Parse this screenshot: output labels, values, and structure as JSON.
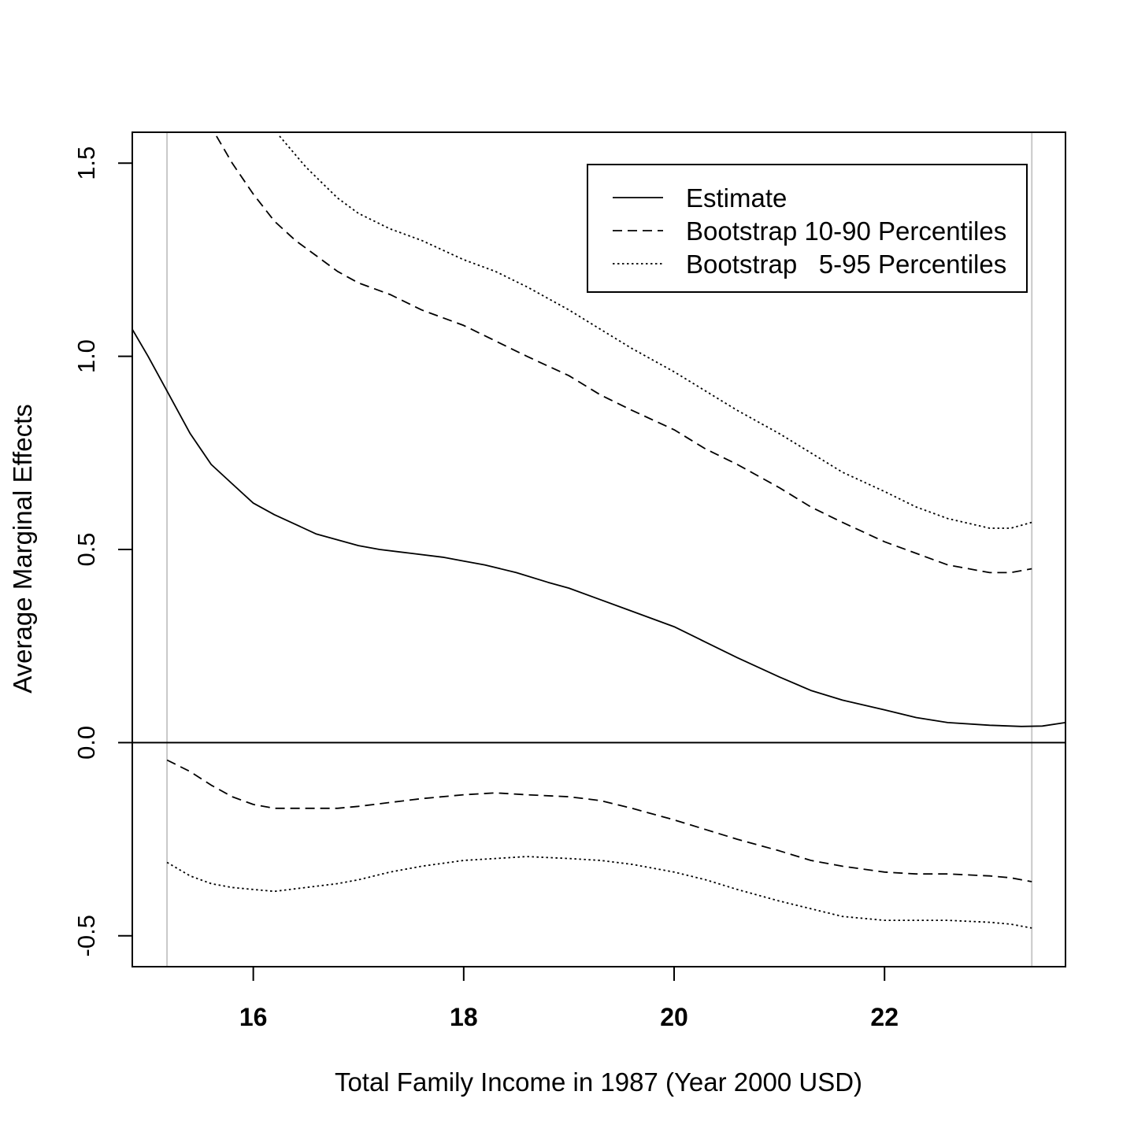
{
  "chart_data": {
    "type": "line",
    "title": "",
    "xlabel": "Total Family Income in 1987 (Year 2000 USD)",
    "ylabel": "Average Marginal Effects",
    "xlim": [
      14.85,
      23.72
    ],
    "ylim": [
      -0.58,
      1.58
    ],
    "x_ticks": [
      16,
      18,
      20,
      22
    ],
    "x_tick_labels": [
      "16",
      "18",
      "20",
      "22"
    ],
    "y_ticks": [
      -0.5,
      0.0,
      0.5,
      1.0,
      1.5
    ],
    "y_tick_labels": [
      "-0.5",
      "0.0",
      "0.5",
      "1.0",
      "1.5"
    ],
    "reference_hline": 0.0,
    "reference_vlines": [
      15.18,
      23.4
    ],
    "grid": false,
    "legend_position": "top-right",
    "legend": [
      {
        "label": "Estimate",
        "style": "solid"
      },
      {
        "label": "Bootstrap 10-90 Percentiles",
        "style": "dashed"
      },
      {
        "label": "Bootstrap   5-95 Percentiles",
        "style": "dotted"
      }
    ],
    "series": [
      {
        "name": "Estimate",
        "style": "solid",
        "x": [
          14.85,
          15.0,
          15.2,
          15.4,
          15.6,
          15.8,
          16.0,
          16.2,
          16.4,
          16.6,
          16.8,
          17.0,
          17.2,
          17.5,
          17.8,
          18.0,
          18.2,
          18.5,
          18.8,
          19.0,
          19.3,
          19.6,
          20.0,
          20.3,
          20.6,
          21.0,
          21.3,
          21.6,
          22.0,
          22.3,
          22.6,
          23.0,
          23.3,
          23.5,
          23.72
        ],
        "y": [
          1.07,
          1.0,
          0.9,
          0.8,
          0.72,
          0.67,
          0.62,
          0.59,
          0.565,
          0.54,
          0.525,
          0.51,
          0.5,
          0.49,
          0.48,
          0.47,
          0.46,
          0.44,
          0.415,
          0.4,
          0.37,
          0.34,
          0.3,
          0.26,
          0.22,
          0.17,
          0.135,
          0.11,
          0.085,
          0.065,
          0.052,
          0.045,
          0.042,
          0.043,
          0.052
        ]
      },
      {
        "name": "Bootstrap 10-90 Percentiles (upper)",
        "style": "dashed",
        "x": [
          15.65,
          15.8,
          16.0,
          16.2,
          16.4,
          16.6,
          16.8,
          17.0,
          17.3,
          17.6,
          18.0,
          18.3,
          18.6,
          19.0,
          19.3,
          19.6,
          20.0,
          20.3,
          20.6,
          21.0,
          21.3,
          21.6,
          22.0,
          22.3,
          22.6,
          23.0,
          23.2,
          23.4
        ],
        "y": [
          1.57,
          1.5,
          1.42,
          1.35,
          1.3,
          1.26,
          1.22,
          1.19,
          1.16,
          1.12,
          1.08,
          1.04,
          1.0,
          0.95,
          0.9,
          0.86,
          0.81,
          0.76,
          0.72,
          0.66,
          0.61,
          0.57,
          0.52,
          0.49,
          0.46,
          0.44,
          0.44,
          0.45
        ]
      },
      {
        "name": "Bootstrap 5-95 Percentiles (upper)",
        "style": "dotted",
        "x": [
          16.25,
          16.5,
          16.8,
          17.0,
          17.3,
          17.6,
          18.0,
          18.3,
          18.6,
          19.0,
          19.3,
          19.6,
          20.0,
          20.3,
          20.6,
          21.0,
          21.3,
          21.6,
          22.0,
          22.3,
          22.6,
          23.0,
          23.2,
          23.4
        ],
        "y": [
          1.57,
          1.49,
          1.41,
          1.37,
          1.33,
          1.3,
          1.25,
          1.22,
          1.18,
          1.12,
          1.07,
          1.02,
          0.96,
          0.91,
          0.86,
          0.8,
          0.75,
          0.7,
          0.65,
          0.61,
          0.58,
          0.555,
          0.555,
          0.57
        ]
      },
      {
        "name": "Bootstrap 10-90 Percentiles (lower)",
        "style": "dashed",
        "x": [
          15.18,
          15.4,
          15.6,
          15.8,
          16.0,
          16.2,
          16.5,
          16.8,
          17.0,
          17.3,
          17.6,
          18.0,
          18.3,
          18.6,
          19.0,
          19.3,
          19.6,
          20.0,
          20.3,
          20.6,
          21.0,
          21.3,
          21.6,
          22.0,
          22.3,
          22.6,
          23.0,
          23.2,
          23.4
        ],
        "y": [
          -0.045,
          -0.075,
          -0.11,
          -0.14,
          -0.16,
          -0.17,
          -0.17,
          -0.17,
          -0.165,
          -0.155,
          -0.145,
          -0.135,
          -0.13,
          -0.135,
          -0.14,
          -0.15,
          -0.17,
          -0.2,
          -0.225,
          -0.25,
          -0.28,
          -0.305,
          -0.32,
          -0.335,
          -0.34,
          -0.34,
          -0.345,
          -0.35,
          -0.36
        ]
      },
      {
        "name": "Bootstrap 5-95 Percentiles (lower)",
        "style": "dotted",
        "x": [
          15.18,
          15.4,
          15.6,
          15.8,
          16.0,
          16.2,
          16.5,
          16.8,
          17.0,
          17.3,
          17.6,
          18.0,
          18.3,
          18.6,
          19.0,
          19.3,
          19.6,
          20.0,
          20.3,
          20.6,
          21.0,
          21.3,
          21.6,
          22.0,
          22.3,
          22.6,
          23.0,
          23.2,
          23.4
        ],
        "y": [
          -0.31,
          -0.345,
          -0.365,
          -0.375,
          -0.38,
          -0.385,
          -0.375,
          -0.365,
          -0.355,
          -0.335,
          -0.32,
          -0.305,
          -0.3,
          -0.295,
          -0.3,
          -0.305,
          -0.315,
          -0.335,
          -0.355,
          -0.38,
          -0.41,
          -0.43,
          -0.45,
          -0.46,
          -0.46,
          -0.46,
          -0.465,
          -0.47,
          -0.48
        ]
      }
    ]
  }
}
